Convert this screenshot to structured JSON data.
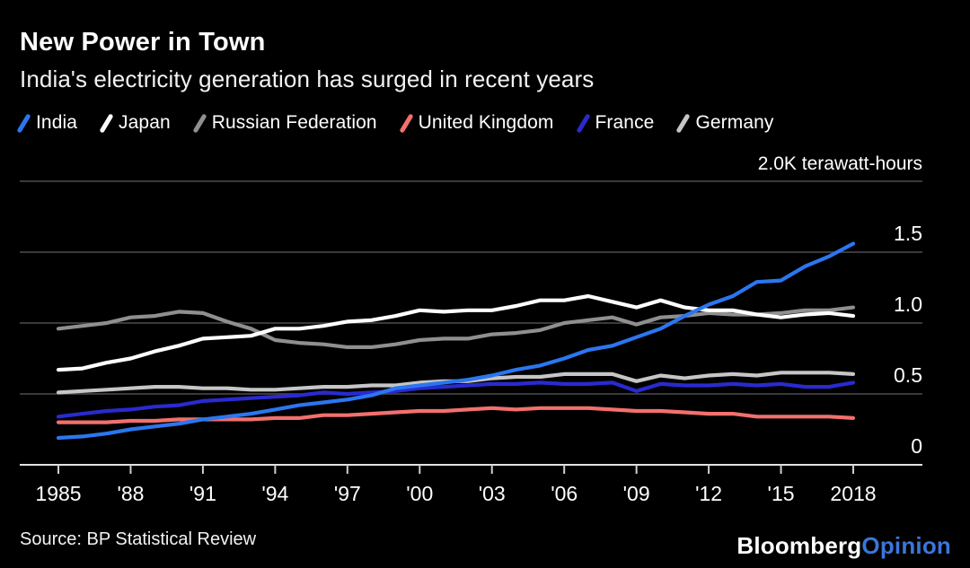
{
  "header": {
    "title": "New Power in Town",
    "subtitle": "India's electricity generation has surged in recent years"
  },
  "footer": {
    "source": "Source: BP Statistical Review",
    "brand": "Bloomberg",
    "brand_suffix": "Opinion"
  },
  "colors": {
    "background": "#000000",
    "text": "#ffffff",
    "grid": "#4d4d4d",
    "axis": "#e2e2e2",
    "opinion_blue": "#3a76db"
  },
  "chart_data": {
    "type": "line",
    "title": "New Power in Town",
    "subtitle": "India's electricity generation has surged in recent years",
    "unit_label": "2.0K terawatt-hours",
    "ylabel": "terawatt-hours (thousands)",
    "ylim": [
      0,
      2.0
    ],
    "grid": true,
    "legend_position": "top",
    "x": [
      1985,
      1986,
      1987,
      1988,
      1989,
      1990,
      1991,
      1992,
      1993,
      1994,
      1995,
      1996,
      1997,
      1998,
      1999,
      2000,
      2001,
      2002,
      2003,
      2004,
      2005,
      2006,
      2007,
      2008,
      2009,
      2010,
      2011,
      2012,
      2013,
      2014,
      2015,
      2016,
      2017,
      2018
    ],
    "x_ticks": [
      {
        "year": 1985,
        "label": "1985"
      },
      {
        "year": 1988,
        "label": "'88"
      },
      {
        "year": 1991,
        "label": "'91"
      },
      {
        "year": 1994,
        "label": "'94"
      },
      {
        "year": 1997,
        "label": "'97"
      },
      {
        "year": 2000,
        "label": "'00"
      },
      {
        "year": 2003,
        "label": "'03"
      },
      {
        "year": 2006,
        "label": "'06"
      },
      {
        "year": 2009,
        "label": "'09"
      },
      {
        "year": 2012,
        "label": "'12"
      },
      {
        "year": 2015,
        "label": "'15"
      },
      {
        "year": 2018,
        "label": "2018"
      }
    ],
    "y_ticks": [
      {
        "value": 2.0,
        "label": "2.0K terawatt-hours"
      },
      {
        "value": 1.5,
        "label": "1.5"
      },
      {
        "value": 1.0,
        "label": "1.0"
      },
      {
        "value": 0.5,
        "label": "0.5"
      },
      {
        "value": 0,
        "label": "0"
      }
    ],
    "series": [
      {
        "name": "India",
        "color": "#2b76f0",
        "values": [
          0.19,
          0.2,
          0.22,
          0.25,
          0.27,
          0.29,
          0.32,
          0.34,
          0.36,
          0.39,
          0.42,
          0.44,
          0.46,
          0.49,
          0.54,
          0.56,
          0.58,
          0.6,
          0.63,
          0.67,
          0.7,
          0.75,
          0.81,
          0.84,
          0.9,
          0.96,
          1.05,
          1.13,
          1.19,
          1.29,
          1.3,
          1.4,
          1.47,
          1.56
        ]
      },
      {
        "name": "Japan",
        "color": "#ffffff",
        "values": [
          0.67,
          0.68,
          0.72,
          0.75,
          0.8,
          0.84,
          0.89,
          0.9,
          0.91,
          0.96,
          0.96,
          0.98,
          1.01,
          1.02,
          1.05,
          1.09,
          1.08,
          1.09,
          1.09,
          1.12,
          1.16,
          1.16,
          1.19,
          1.15,
          1.11,
          1.16,
          1.11,
          1.09,
          1.09,
          1.06,
          1.04,
          1.06,
          1.07,
          1.05
        ]
      },
      {
        "name": "Russian Federation",
        "color": "#8f8f8f",
        "values": [
          0.96,
          0.98,
          1.0,
          1.04,
          1.05,
          1.08,
          1.07,
          1.01,
          0.96,
          0.88,
          0.86,
          0.85,
          0.83,
          0.83,
          0.85,
          0.88,
          0.89,
          0.89,
          0.92,
          0.93,
          0.95,
          1.0,
          1.02,
          1.04,
          0.99,
          1.04,
          1.05,
          1.07,
          1.06,
          1.06,
          1.07,
          1.09,
          1.09,
          1.11
        ]
      },
      {
        "name": "United Kingdom",
        "color": "#f2706d",
        "values": [
          0.3,
          0.3,
          0.3,
          0.31,
          0.31,
          0.32,
          0.32,
          0.32,
          0.32,
          0.33,
          0.33,
          0.35,
          0.35,
          0.36,
          0.37,
          0.38,
          0.38,
          0.39,
          0.4,
          0.39,
          0.4,
          0.4,
          0.4,
          0.39,
          0.38,
          0.38,
          0.37,
          0.36,
          0.36,
          0.34,
          0.34,
          0.34,
          0.34,
          0.33
        ]
      },
      {
        "name": "France",
        "color": "#2a2ad0",
        "values": [
          0.34,
          0.36,
          0.38,
          0.39,
          0.41,
          0.42,
          0.45,
          0.46,
          0.47,
          0.48,
          0.49,
          0.51,
          0.5,
          0.51,
          0.52,
          0.54,
          0.55,
          0.56,
          0.57,
          0.57,
          0.58,
          0.57,
          0.57,
          0.58,
          0.52,
          0.57,
          0.56,
          0.56,
          0.57,
          0.56,
          0.57,
          0.55,
          0.55,
          0.58
        ]
      },
      {
        "name": "Germany",
        "color": "#c6c6c6",
        "values": [
          0.51,
          0.52,
          0.53,
          0.54,
          0.55,
          0.55,
          0.54,
          0.54,
          0.53,
          0.53,
          0.54,
          0.55,
          0.55,
          0.56,
          0.56,
          0.58,
          0.59,
          0.59,
          0.61,
          0.62,
          0.62,
          0.64,
          0.64,
          0.64,
          0.59,
          0.63,
          0.61,
          0.63,
          0.64,
          0.63,
          0.65,
          0.65,
          0.65,
          0.64
        ]
      }
    ]
  }
}
